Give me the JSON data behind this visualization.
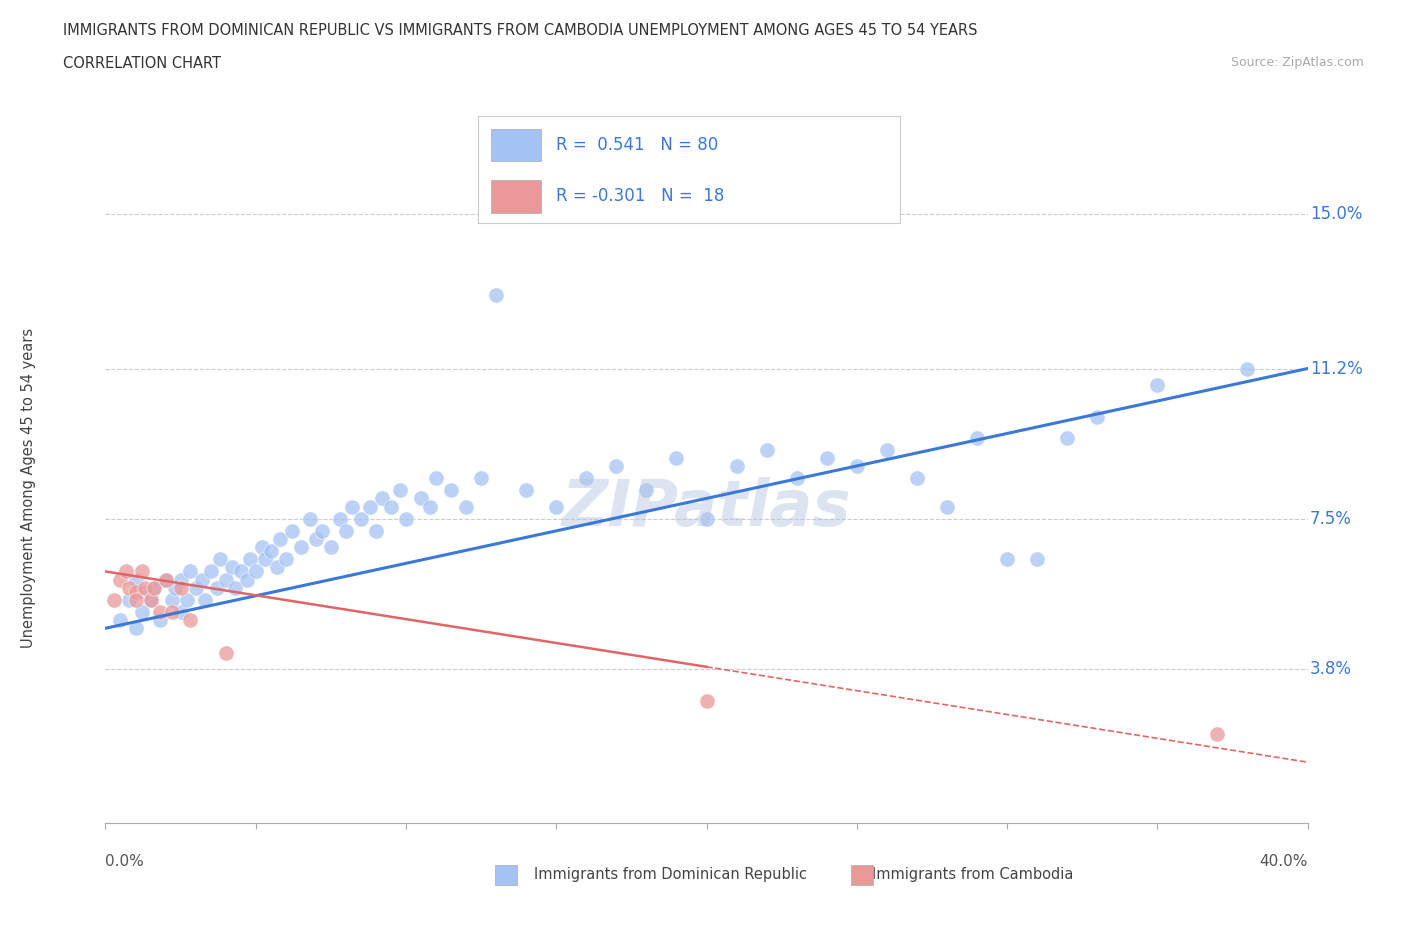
{
  "title_line1": "IMMIGRANTS FROM DOMINICAN REPUBLIC VS IMMIGRANTS FROM CAMBODIA UNEMPLOYMENT AMONG AGES 45 TO 54 YEARS",
  "title_line2": "CORRELATION CHART",
  "source_text": "Source: ZipAtlas.com",
  "ylabel": "Unemployment Among Ages 45 to 54 years",
  "xlim": [
    0.0,
    0.4
  ],
  "ylim": [
    0.0,
    0.165
  ],
  "ytick_values": [
    0.038,
    0.075,
    0.112,
    0.15
  ],
  "ytick_labels": [
    "3.8%",
    "7.5%",
    "11.2%",
    "15.0%"
  ],
  "series1_name": "Immigrants from Dominican Republic",
  "series1_color": "#a4c2f4",
  "series1_R": 0.541,
  "series1_N": 80,
  "series2_name": "Immigrants from Cambodia",
  "series2_color": "#ea9999",
  "series2_R": -0.301,
  "series2_N": 18,
  "series1_x": [
    0.005,
    0.008,
    0.01,
    0.01,
    0.012,
    0.013,
    0.015,
    0.016,
    0.018,
    0.02,
    0.022,
    0.023,
    0.025,
    0.025,
    0.027,
    0.028,
    0.03,
    0.032,
    0.033,
    0.035,
    0.037,
    0.038,
    0.04,
    0.042,
    0.043,
    0.045,
    0.047,
    0.048,
    0.05,
    0.052,
    0.053,
    0.055,
    0.057,
    0.058,
    0.06,
    0.062,
    0.065,
    0.068,
    0.07,
    0.072,
    0.075,
    0.078,
    0.08,
    0.082,
    0.085,
    0.088,
    0.09,
    0.092,
    0.095,
    0.098,
    0.1,
    0.105,
    0.108,
    0.11,
    0.115,
    0.12,
    0.125,
    0.13,
    0.14,
    0.15,
    0.16,
    0.17,
    0.18,
    0.19,
    0.2,
    0.21,
    0.22,
    0.23,
    0.24,
    0.25,
    0.26,
    0.27,
    0.28,
    0.29,
    0.3,
    0.31,
    0.32,
    0.33,
    0.35,
    0.38
  ],
  "series1_y": [
    0.05,
    0.055,
    0.048,
    0.06,
    0.052,
    0.057,
    0.055,
    0.058,
    0.05,
    0.06,
    0.055,
    0.058,
    0.052,
    0.06,
    0.055,
    0.062,
    0.058,
    0.06,
    0.055,
    0.062,
    0.058,
    0.065,
    0.06,
    0.063,
    0.058,
    0.062,
    0.06,
    0.065,
    0.062,
    0.068,
    0.065,
    0.067,
    0.063,
    0.07,
    0.065,
    0.072,
    0.068,
    0.075,
    0.07,
    0.072,
    0.068,
    0.075,
    0.072,
    0.078,
    0.075,
    0.078,
    0.072,
    0.08,
    0.078,
    0.082,
    0.075,
    0.08,
    0.078,
    0.085,
    0.082,
    0.078,
    0.085,
    0.13,
    0.082,
    0.078,
    0.085,
    0.088,
    0.082,
    0.09,
    0.075,
    0.088,
    0.092,
    0.085,
    0.09,
    0.088,
    0.092,
    0.085,
    0.078,
    0.095,
    0.065,
    0.065,
    0.095,
    0.1,
    0.108,
    0.112
  ],
  "series2_x": [
    0.003,
    0.005,
    0.007,
    0.008,
    0.01,
    0.01,
    0.012,
    0.013,
    0.015,
    0.016,
    0.018,
    0.02,
    0.022,
    0.025,
    0.028,
    0.04,
    0.2,
    0.37
  ],
  "series2_y": [
    0.055,
    0.06,
    0.062,
    0.058,
    0.057,
    0.055,
    0.062,
    0.058,
    0.055,
    0.058,
    0.052,
    0.06,
    0.052,
    0.058,
    0.05,
    0.042,
    0.03,
    0.022
  ],
  "line1_color": "#3c78d8",
  "line2_color": "#e06666",
  "legend_text_color": "#3c78d8",
  "background_color": "#ffffff",
  "grid_color": "#cccccc",
  "watermark_text": "ZIPatlas",
  "watermark_color": "#b0c4de"
}
